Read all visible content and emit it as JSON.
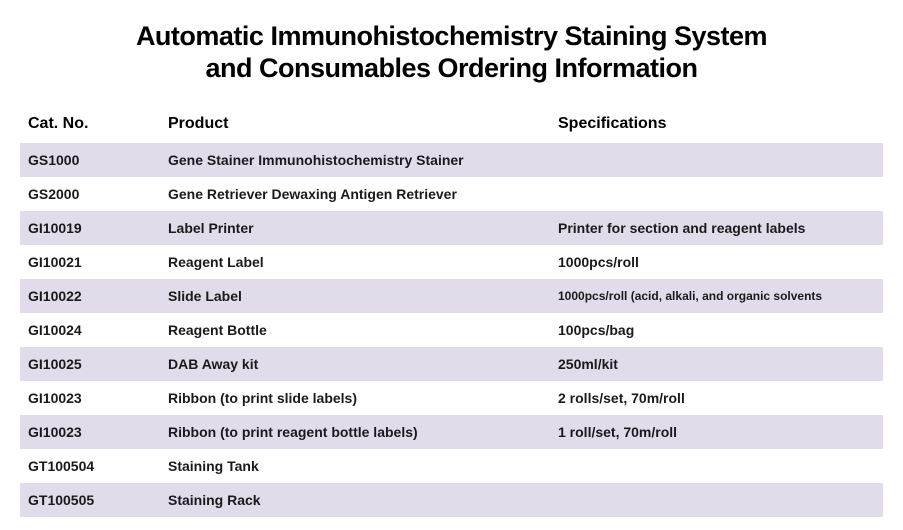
{
  "title_line1": "Automatic Immunohistochemistry Staining System",
  "title_line2": "and Consumables Ordering Information",
  "headers": {
    "cat": "Cat. No.",
    "product": "Product",
    "spec": "Specifications"
  },
  "rows": [
    {
      "cat": "GS1000",
      "product": "Gene Stainer Immunohistochemistry Stainer",
      "spec": "",
      "alt": true
    },
    {
      "cat": "GS2000",
      "product": "Gene Retriever Dewaxing Antigen Retriever",
      "spec": "",
      "alt": false
    },
    {
      "cat": "GI10019",
      "product": "Label Printer",
      "spec": "Printer for section and reagent labels",
      "alt": true
    },
    {
      "cat": "GI10021",
      "product": "Reagent Label",
      "spec": "1000pcs/roll",
      "alt": false
    },
    {
      "cat": "GI10022",
      "product": "Slide Label",
      "spec": "1000pcs/roll (acid, alkali, and organic solvents",
      "alt": true,
      "smallSpec": true
    },
    {
      "cat": "GI10024",
      "product": "Reagent Bottle",
      "spec": "100pcs/bag",
      "alt": false
    },
    {
      "cat": "GI10025",
      "product": "DAB Away kit",
      "spec": "250ml/kit",
      "alt": true
    },
    {
      "cat": "GI10023",
      "product": "Ribbon (to print slide labels)",
      "spec": "2 rolls/set, 70m/roll",
      "alt": false
    },
    {
      "cat": "GI10023",
      "product": "Ribbon (to print reagent bottle labels)",
      "spec": "1 roll/set, 70m/roll",
      "alt": true
    },
    {
      "cat": "GT100504",
      "product": "Staining Tank",
      "spec": "",
      "alt": false
    },
    {
      "cat": "GT100505",
      "product": "Staining Rack",
      "spec": "",
      "alt": true
    }
  ],
  "colors": {
    "alt_row_bg": "#e2dbea",
    "text": "#000000",
    "background": "#ffffff"
  }
}
